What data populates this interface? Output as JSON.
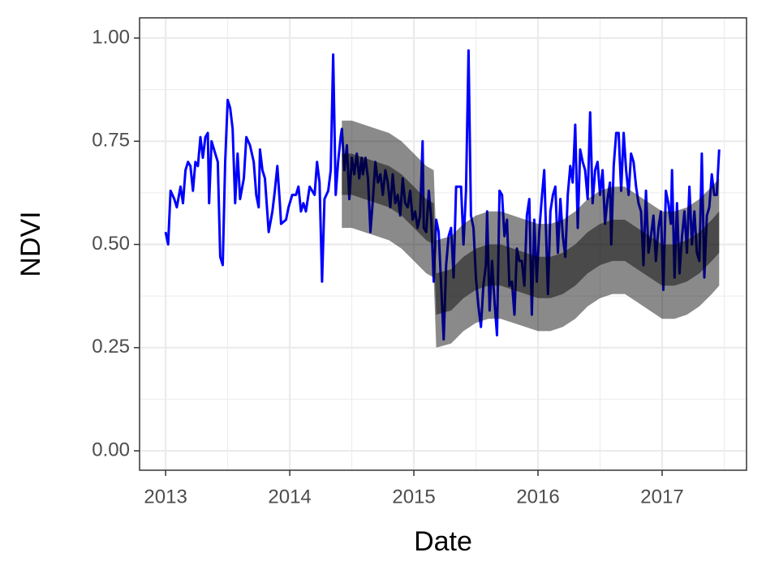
{
  "chart_data": {
    "type": "line",
    "xlabel": "Date",
    "ylabel": "NDVI",
    "xlim": [
      2012.79,
      2017.68
    ],
    "ylim": [
      -0.047,
      1.049
    ],
    "xticks": [
      2013,
      2014,
      2015,
      2016,
      2017
    ],
    "xminor": [
      2013.5,
      2014.5,
      2015.5,
      2016.5,
      2017.5
    ],
    "yticks": [
      {
        "value": 0,
        "label": "0.00"
      },
      {
        "value": 0.25,
        "label": "0.25"
      },
      {
        "value": 0.5,
        "label": "0.50"
      },
      {
        "value": 0.75,
        "label": "0.75"
      },
      {
        "value": 1,
        "label": "1.00"
      }
    ],
    "yminor": [
      0.125,
      0.375,
      0.625,
      0.875
    ],
    "grid": true,
    "series": [
      {
        "color": "#0000ff",
        "x": [
          2013.0,
          2013.02,
          2013.04,
          2013.07,
          2013.09,
          2013.12,
          2013.14,
          2013.16,
          2013.18,
          2013.2,
          2013.22,
          2013.24,
          2013.26,
          2013.28,
          2013.3,
          2013.32,
          2013.34,
          2013.35,
          2013.37,
          2013.4,
          2013.42,
          2013.44,
          2013.46,
          2013.48,
          2013.5,
          2013.52,
          2013.54,
          2013.56,
          2013.58,
          2013.6,
          2013.63,
          2013.65,
          2013.68,
          2013.71,
          2013.73,
          2013.75,
          2013.76,
          2013.78,
          2013.8,
          2013.83,
          2013.86,
          2013.88,
          2013.9,
          2013.92,
          2013.93,
          2013.97,
          2013.99,
          2014.02,
          2014.05,
          2014.07,
          2014.09,
          2014.11,
          2014.13,
          2014.16,
          2014.18,
          2014.2,
          2014.22,
          2014.24,
          2014.26,
          2014.28,
          2014.31,
          2014.33,
          2014.35,
          2014.37,
          2014.39,
          2014.41,
          2014.42,
          2014.44,
          2014.46,
          2014.48,
          2014.5,
          2014.52,
          2014.54,
          2014.56,
          2014.58,
          2014.59,
          2014.61,
          2014.63,
          2014.65,
          2014.67,
          2014.69,
          2014.71,
          2014.73,
          2014.75,
          2014.77,
          2014.79,
          2014.81,
          2014.83,
          2014.85,
          2014.87,
          2014.89,
          2014.91,
          2014.93,
          2014.95,
          2014.97,
          2014.99,
          2015.01,
          2015.03,
          2015.05,
          2015.07,
          2015.08,
          2015.1,
          2015.12,
          2015.14,
          2015.16,
          2015.18,
          2015.2,
          2015.22,
          2015.24,
          2015.26,
          2015.28,
          2015.3,
          2015.32,
          2015.34,
          2015.36,
          2015.38,
          2015.4,
          2015.42,
          2015.44,
          2015.46,
          2015.48,
          2015.5,
          2015.52,
          2015.54,
          2015.56,
          2015.58,
          2015.59,
          2015.61,
          2015.63,
          2015.65,
          2015.67,
          2015.69,
          2015.71,
          2015.73,
          2015.75,
          2015.77,
          2015.79,
          2015.81,
          2015.83,
          2015.85,
          2015.87,
          2015.89,
          2015.91,
          2015.93,
          2015.95,
          2015.97,
          2015.99,
          2016.01,
          2016.03,
          2016.05,
          2016.07,
          2016.08,
          2016.1,
          2016.12,
          2016.14,
          2016.16,
          2016.18,
          2016.2,
          2016.22,
          2016.24,
          2016.26,
          2016.28,
          2016.3,
          2016.32,
          2016.34,
          2016.36,
          2016.38,
          2016.4,
          2016.42,
          2016.44,
          2016.46,
          2016.48,
          2016.5,
          2016.52,
          2016.54,
          2016.56,
          2016.58,
          2016.59,
          2016.61,
          2016.63,
          2016.65,
          2016.67,
          2016.69,
          2016.71,
          2016.73,
          2016.75,
          2016.77,
          2016.79,
          2016.81,
          2016.83,
          2016.85,
          2016.87,
          2016.89,
          2016.91,
          2016.93,
          2016.95,
          2016.97,
          2016.99,
          2017.01,
          2017.03,
          2017.05,
          2017.07,
          2017.08,
          2017.1,
          2017.12,
          2017.14,
          2017.16,
          2017.18,
          2017.2,
          2017.22,
          2017.24,
          2017.26,
          2017.28,
          2017.3,
          2017.32,
          2017.34,
          2017.36,
          2017.38,
          2017.4,
          2017.42,
          2017.44,
          2017.46
        ],
        "values": [
          0.53,
          0.5,
          0.63,
          0.61,
          0.59,
          0.64,
          0.6,
          0.68,
          0.7,
          0.69,
          0.63,
          0.7,
          0.69,
          0.76,
          0.71,
          0.76,
          0.77,
          0.6,
          0.75,
          0.72,
          0.7,
          0.47,
          0.45,
          0.7,
          0.85,
          0.83,
          0.78,
          0.6,
          0.72,
          0.61,
          0.66,
          0.76,
          0.74,
          0.7,
          0.62,
          0.59,
          0.73,
          0.68,
          0.66,
          0.53,
          0.58,
          0.63,
          0.69,
          0.6,
          0.55,
          0.56,
          0.59,
          0.62,
          0.62,
          0.64,
          0.58,
          0.6,
          0.58,
          0.64,
          0.63,
          0.62,
          0.7,
          0.65,
          0.41,
          0.61,
          0.63,
          0.68,
          0.96,
          0.62,
          0.7,
          0.76,
          0.78,
          0.68,
          0.74,
          0.61,
          0.71,
          0.67,
          0.72,
          0.66,
          0.71,
          0.67,
          0.71,
          0.66,
          0.53,
          0.61,
          0.7,
          0.65,
          0.67,
          0.62,
          0.68,
          0.65,
          0.59,
          0.67,
          0.6,
          0.62,
          0.57,
          0.66,
          0.6,
          0.59,
          0.63,
          0.56,
          0.58,
          0.54,
          0.57,
          0.75,
          0.54,
          0.53,
          0.63,
          0.56,
          0.41,
          0.56,
          0.53,
          0.4,
          0.27,
          0.45,
          0.52,
          0.54,
          0.42,
          0.64,
          0.64,
          0.64,
          0.5,
          0.63,
          0.97,
          0.57,
          0.54,
          0.42,
          0.35,
          0.3,
          0.4,
          0.45,
          0.58,
          0.34,
          0.46,
          0.36,
          0.28,
          0.63,
          0.62,
          0.52,
          0.56,
          0.4,
          0.41,
          0.33,
          0.49,
          0.46,
          0.46,
          0.4,
          0.57,
          0.61,
          0.33,
          0.56,
          0.41,
          0.53,
          0.61,
          0.68,
          0.48,
          0.38,
          0.58,
          0.62,
          0.64,
          0.48,
          0.61,
          0.52,
          0.47,
          0.62,
          0.69,
          0.65,
          0.79,
          0.54,
          0.73,
          0.7,
          0.68,
          0.61,
          0.82,
          0.6,
          0.68,
          0.7,
          0.62,
          0.68,
          0.55,
          0.61,
          0.65,
          0.5,
          0.69,
          0.77,
          0.77,
          0.63,
          0.77,
          0.68,
          0.62,
          0.72,
          0.7,
          0.64,
          0.6,
          0.58,
          0.45,
          0.63,
          0.48,
          0.52,
          0.57,
          0.46,
          0.54,
          0.58,
          0.39,
          0.63,
          0.6,
          0.55,
          0.68,
          0.42,
          0.6,
          0.43,
          0.52,
          0.58,
          0.48,
          0.64,
          0.5,
          0.58,
          0.48,
          0.46,
          0.72,
          0.42,
          0.57,
          0.59,
          0.67,
          0.62,
          0.62,
          0.73
        ]
      }
    ],
    "bands": {
      "outer_color": "#000000",
      "inner_color": "#000000",
      "opacity": 0.46,
      "x": [
        2014.42,
        2014.5,
        2014.6,
        2014.7,
        2014.8,
        2014.9,
        2015.0,
        2015.1,
        2015.16,
        2015.18,
        2015.3,
        2015.4,
        2015.5,
        2015.6,
        2015.7,
        2015.8,
        2015.9,
        2016.0,
        2016.1,
        2016.2,
        2016.3,
        2016.4,
        2016.5,
        2016.6,
        2016.7,
        2016.8,
        2016.9,
        2017.0,
        2017.1,
        2017.2,
        2017.3,
        2017.4,
        2017.46
      ],
      "outer_upper": [
        0.8,
        0.8,
        0.79,
        0.78,
        0.77,
        0.75,
        0.72,
        0.69,
        0.68,
        0.51,
        0.52,
        0.55,
        0.57,
        0.58,
        0.58,
        0.57,
        0.56,
        0.55,
        0.55,
        0.56,
        0.58,
        0.61,
        0.63,
        0.64,
        0.64,
        0.62,
        0.6,
        0.58,
        0.58,
        0.59,
        0.61,
        0.64,
        0.66
      ],
      "outer_lower": [
        0.54,
        0.54,
        0.53,
        0.52,
        0.51,
        0.49,
        0.46,
        0.43,
        0.42,
        0.25,
        0.26,
        0.29,
        0.31,
        0.32,
        0.32,
        0.31,
        0.3,
        0.29,
        0.29,
        0.3,
        0.32,
        0.35,
        0.37,
        0.38,
        0.38,
        0.36,
        0.34,
        0.32,
        0.32,
        0.33,
        0.35,
        0.38,
        0.4
      ],
      "inner_upper": [
        0.72,
        0.72,
        0.71,
        0.7,
        0.69,
        0.67,
        0.64,
        0.61,
        0.6,
        0.43,
        0.44,
        0.47,
        0.49,
        0.5,
        0.5,
        0.49,
        0.48,
        0.47,
        0.47,
        0.48,
        0.5,
        0.53,
        0.55,
        0.56,
        0.56,
        0.54,
        0.52,
        0.5,
        0.5,
        0.51,
        0.53,
        0.56,
        0.58
      ],
      "inner_lower": [
        0.62,
        0.62,
        0.61,
        0.6,
        0.59,
        0.57,
        0.54,
        0.51,
        0.5,
        0.33,
        0.34,
        0.37,
        0.39,
        0.4,
        0.4,
        0.39,
        0.38,
        0.37,
        0.37,
        0.38,
        0.4,
        0.43,
        0.45,
        0.46,
        0.46,
        0.44,
        0.42,
        0.4,
        0.4,
        0.41,
        0.43,
        0.46,
        0.48
      ]
    }
  }
}
